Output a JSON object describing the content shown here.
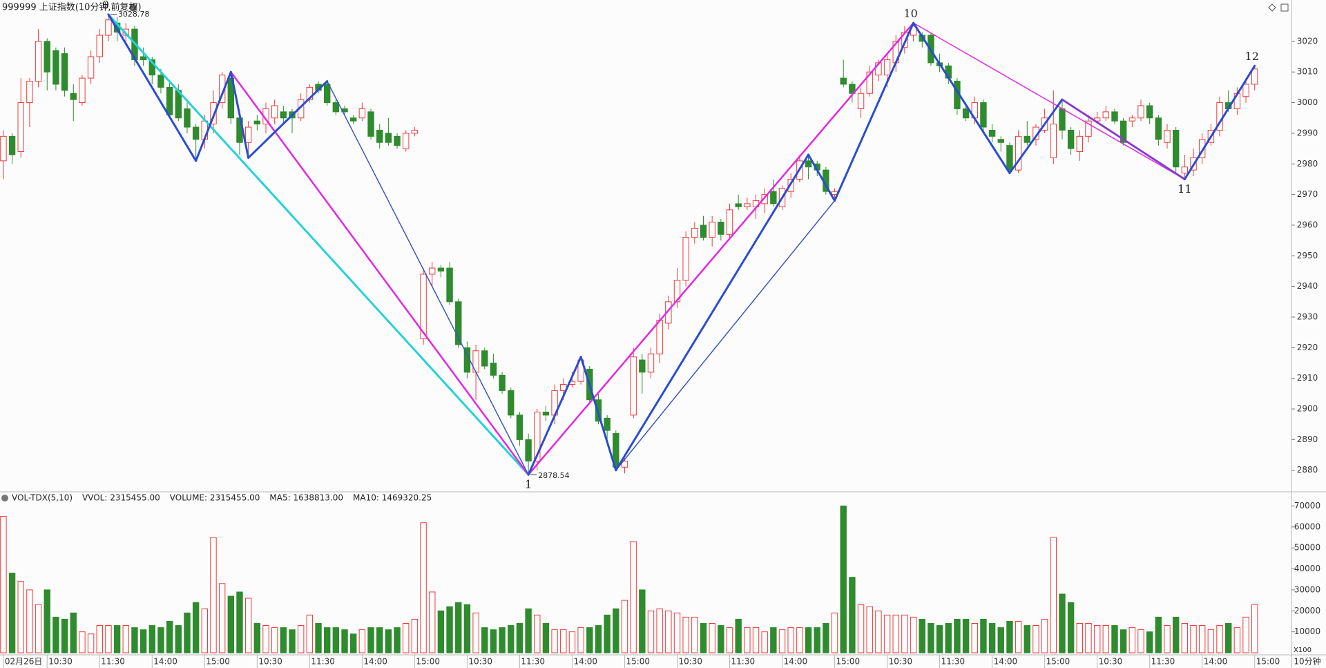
{
  "header": {
    "title": "999999 上证指数(10分钟,前复权)",
    "period": "10分钟"
  },
  "chart_data": [
    {
      "type": "candlestick",
      "up_color": "#f03a3a",
      "down_color": "#2e8b2e",
      "ylim": [
        2873.4,
        3033.5
      ],
      "yticks": [
        2880,
        2890,
        2900,
        2910,
        2920,
        2930,
        2940,
        2950,
        2960,
        2970,
        2980,
        2990,
        3000,
        3010,
        3020
      ],
      "open": [
        2981,
        2989,
        2984,
        3000,
        3007,
        3020,
        3017,
        3016,
        3003,
        3000,
        3008,
        3015,
        3022,
        3026,
        3022,
        3024,
        3015,
        3014,
        3009,
        3005,
        3004,
        2998,
        2992,
        2988,
        2993,
        3000,
        3008,
        2995,
        2987,
        2994,
        2993,
        2995,
        2997,
        2997,
        2995,
        3001,
        3006,
        3006,
        3000,
        2998,
        2995,
        2995,
        2997,
        2991,
        2990,
        2989,
        2985,
        2990,
        2923,
        2944,
        2946,
        2946,
        2935,
        2920,
        2912,
        2919,
        2915,
        2911,
        2906,
        2898,
        2890,
        2883,
        2899,
        2898,
        2906,
        2908,
        2909,
        2913,
        2903,
        2897,
        2892,
        2881,
        2898,
        2916,
        2912,
        2918,
        2928,
        2935,
        2942,
        2956,
        2960,
        2956,
        2961,
        2957,
        2967,
        2966,
        2966,
        2967,
        2971,
        2966,
        2971,
        2975,
        2981,
        2980,
        2978,
        2970,
        3008,
        3006,
        2998,
        3003,
        3009,
        3009,
        3013,
        3018,
        3022,
        3022,
        3022,
        3013,
        3012,
        3007,
        2998,
        2995,
        3000,
        2991,
        2988,
        2986,
        2978,
        2989,
        2988,
        2991,
        2982,
        2998,
        2991,
        2984,
        2989,
        2994,
        2995,
        2997,
        2994,
        2994,
        2995,
        2999,
        2995,
        2987,
        2991,
        2977,
        2978,
        2982,
        2987,
        2991,
        3000,
        2998,
        3002,
        3006
      ],
      "high": [
        2991,
        2990,
        3008,
        3008,
        3024,
        3021,
        3018,
        3018,
        3006,
        3009,
        3017,
        3024,
        3028.78,
        3028,
        3026,
        3025,
        3018,
        3015,
        3011,
        3007,
        3006,
        3000,
        2993,
        2996,
        3004,
        3010,
        3010,
        2997,
        2994,
        2996,
        3000,
        3001,
        2999,
        2998,
        3003,
        3006,
        3007,
        3007,
        3001,
        2999,
        2996,
        3000,
        2998,
        2993,
        2995,
        2990,
        2991,
        2992,
        2946,
        2948,
        2947,
        2948,
        2936,
        2922,
        2921,
        2920,
        2918,
        2912,
        2907,
        2899,
        2892,
        2900,
        2901,
        2908,
        2910,
        2912,
        2917,
        2914,
        2905,
        2898,
        2893,
        2884,
        2920,
        2918,
        2920,
        2931,
        2937,
        2946,
        2958,
        2961,
        2963,
        2963,
        2962,
        2967,
        2970,
        2969,
        2970,
        2972,
        2975,
        2973,
        2977,
        2983,
        2983,
        2981,
        2979,
        2972,
        3014,
        3007,
        3005,
        3012,
        3014,
        3016,
        3022,
        3025,
        3026,
        3023,
        3023,
        3016,
        3013,
        3008,
        3000,
        3002,
        3001,
        2993,
        2989,
        2987,
        2991,
        2994,
        2993,
        2998,
        3004,
        3001,
        2992,
        2991,
        2996,
        2997,
        2999,
        2998,
        2995,
        2996,
        3001,
        3000,
        2996,
        2993,
        2992,
        2983,
        2985,
        2990,
        2993,
        3002,
        3004,
        3005,
        3008,
        3012
      ],
      "low": [
        2975,
        2980,
        2982,
        2992,
        3005,
        3004,
        3004,
        3002,
        2994,
        2999,
        3006,
        3013,
        3020,
        3020,
        3019,
        3012,
        3012,
        3006,
        3003,
        2995,
        2994,
        2990,
        2981,
        2985,
        2990,
        2998,
        2993,
        2983,
        2982,
        2991,
        2990,
        2993,
        2993,
        2990,
        2994,
        3000,
        3003,
        2999,
        2996,
        2996,
        2993,
        2994,
        2988,
        2985,
        2986,
        2985,
        2984,
        2989,
        2921,
        2940,
        2943,
        2934,
        2920,
        2910,
        2903,
        2913,
        2910,
        2905,
        2897,
        2888,
        2878.54,
        2880,
        2896,
        2895,
        2903,
        2907,
        2908,
        2902,
        2895,
        2890,
        2880,
        2879,
        2897,
        2905,
        2910,
        2915,
        2926,
        2933,
        2940,
        2954,
        2955,
        2953,
        2955,
        2956,
        2965,
        2965,
        2962,
        2964,
        2966,
        2965,
        2969,
        2974,
        2975,
        2976,
        2970,
        2968,
        3005,
        3000,
        2995,
        3002,
        3007,
        3005,
        3010,
        3016,
        3020,
        3018,
        3012,
        3010,
        3006,
        2996,
        2994,
        2993,
        2990,
        2987,
        2984,
        2977,
        2977,
        2986,
        2986,
        2990,
        2980,
        2988,
        2983,
        2981,
        2987,
        2993,
        2994,
        2993,
        2986,
        2992,
        2994,
        2993,
        2986,
        2985,
        2977,
        2975,
        2976,
        2980,
        2986,
        2989,
        2997,
        2996,
        3000,
        3004
      ],
      "close": [
        2989,
        2983,
        3000,
        3007,
        3020,
        3010,
        3006,
        3004,
        3001,
        3008,
        3015,
        3022,
        3027,
        3023,
        3024,
        3014,
        3014,
        3009,
        3005,
        2996,
        2995,
        2992,
        2988,
        2994,
        3000,
        3009,
        2995,
        2987,
        2992,
        2993,
        2998,
        2999,
        2995,
        2995,
        3001,
        3005,
        3004,
        3000,
        2997,
        2997,
        2994,
        2998,
        2989,
        2987,
        2987,
        2986,
        2990,
        2991,
        2944,
        2946,
        2945,
        2935,
        2921,
        2912,
        2919,
        2914,
        2911,
        2906,
        2898,
        2890,
        2883,
        2899,
        2898,
        2906,
        2908,
        2909,
        2916,
        2903,
        2896,
        2893,
        2881,
        2883,
        2917,
        2912,
        2918,
        2929,
        2935,
        2942,
        2956,
        2959,
        2956,
        2961,
        2957,
        2965,
        2966,
        2967,
        2968,
        2970,
        2967,
        2972,
        2975,
        2981,
        2979,
        2978,
        2971,
        2971,
        3006,
        3003,
        3003,
        3010,
        3013,
        3014,
        3020,
        3023,
        3025,
        3020,
        3013,
        3012,
        3008,
        2998,
        2995,
        3000,
        2992,
        2989,
        2987,
        2978,
        2989,
        2987,
        2992,
        2995,
        2993,
        2991,
        2985,
        2989,
        2994,
        2995,
        2997,
        2994,
        2987,
        2995,
        2999,
        2995,
        2988,
        2991,
        2979,
        2979,
        2982,
        2988,
        2991,
        3000,
        2998,
        3003,
        3006,
        3011
      ],
      "pivots": [
        {
          "label": "0",
          "x": 12,
          "y": 3028.78,
          "position": "above",
          "show_price": true
        },
        {
          "label": "1",
          "x": 60,
          "y": 2878.54,
          "position": "below",
          "show_price": true
        },
        {
          "label": "10",
          "x": 104,
          "y": 3026,
          "position": "above",
          "show_price": false
        },
        {
          "label": "11",
          "x": 135,
          "y": 2975,
          "position": "below",
          "show_price": false
        },
        {
          "label": "12",
          "x": 143,
          "y": 3012,
          "position": "above",
          "show_price": false
        }
      ],
      "segments": [
        {
          "x": [
            12,
            60
          ],
          "y": [
            3028.78,
            2878.54
          ],
          "color": "#22d3d8",
          "width": 3
        },
        {
          "x": [
            26,
            60
          ],
          "y": [
            3010,
            2878.54
          ],
          "color": "#e526e5",
          "width": 2.5
        },
        {
          "x": [
            60,
            104
          ],
          "y": [
            2878.54,
            3026
          ],
          "color": "#e526e5",
          "width": 2.5
        },
        {
          "x": [
            104,
            135
          ],
          "y": [
            3026,
            2975
          ],
          "color": "#e526e5",
          "width": 1.5
        },
        {
          "x": [
            121,
            135
          ],
          "y": [
            3001,
            2975
          ],
          "color": "#e526e5",
          "width": 3
        },
        {
          "x": [
            12,
            22
          ],
          "y": [
            3028.78,
            2981
          ],
          "color": "#2a4cd4",
          "width": 3
        },
        {
          "x": [
            22,
            26
          ],
          "y": [
            2981,
            3010
          ],
          "color": "#2a4cd4",
          "width": 3
        },
        {
          "x": [
            26,
            28
          ],
          "y": [
            3010,
            2982
          ],
          "color": "#2a4cd4",
          "width": 3
        },
        {
          "x": [
            28,
            37
          ],
          "y": [
            2982,
            3007
          ],
          "color": "#2a4cd4",
          "width": 3
        },
        {
          "x": [
            37,
            60
          ],
          "y": [
            3007,
            2878.54
          ],
          "color": "#3a56c0",
          "width": 1.5
        },
        {
          "x": [
            60,
            66
          ],
          "y": [
            2878.54,
            2917
          ],
          "color": "#2a4cd4",
          "width": 3
        },
        {
          "x": [
            66,
            70
          ],
          "y": [
            2917,
            2880
          ],
          "color": "#2a4cd4",
          "width": 3
        },
        {
          "x": [
            70,
            95
          ],
          "y": [
            2880,
            2968
          ],
          "color": "#3a56c0",
          "width": 1.5
        },
        {
          "x": [
            70,
            92
          ],
          "y": [
            2880,
            2983
          ],
          "color": "#2a4cd4",
          "width": 3
        },
        {
          "x": [
            92,
            95
          ],
          "y": [
            2983,
            2968
          ],
          "color": "#2a4cd4",
          "width": 3
        },
        {
          "x": [
            95,
            104
          ],
          "y": [
            2968,
            3026
          ],
          "color": "#2a4cd4",
          "width": 3
        },
        {
          "x": [
            104,
            115
          ],
          "y": [
            3026,
            2977
          ],
          "color": "#2a4cd4",
          "width": 3
        },
        {
          "x": [
            115,
            121
          ],
          "y": [
            2977,
            3001
          ],
          "color": "#2a4cd4",
          "width": 3
        },
        {
          "x": [
            121,
            135
          ],
          "y": [
            3001,
            2975
          ],
          "color": "#3a56c0",
          "width": 1.5
        },
        {
          "x": [
            135,
            143
          ],
          "y": [
            2975,
            3012
          ],
          "color": "#2a4cd4",
          "width": 3
        }
      ]
    },
    {
      "type": "bar",
      "indicator": [
        {
          "text": "VOL-TDX(5,10)",
          "color": "#222222"
        },
        {
          "text": "VVOL: 2315455.00",
          "color": "#222222"
        },
        {
          "text": "VOLUME: 2315455.00",
          "color": "#1e7ec8"
        },
        {
          "text": "MA5: 1638813.00",
          "color": "#1e7ec8"
        },
        {
          "text": "MA10: 1469320.25",
          "color": "#a0209a"
        }
      ],
      "unit_label": "X100",
      "ylim": [
        0,
        76400
      ],
      "yticks": [
        10000,
        20000,
        30000,
        40000,
        50000,
        60000,
        70000
      ],
      "categories": [
        "02月26日",
        null,
        null,
        null,
        null,
        "10:30",
        null,
        null,
        null,
        null,
        null,
        "11:30",
        null,
        null,
        null,
        null,
        null,
        "14:00",
        null,
        null,
        null,
        null,
        null,
        "15:00",
        null,
        null,
        null,
        null,
        null,
        "10:30",
        null,
        null,
        null,
        null,
        null,
        "11:30",
        null,
        null,
        null,
        null,
        null,
        "14:00",
        null,
        null,
        null,
        null,
        null,
        "15:00",
        null,
        null,
        null,
        null,
        null,
        "10:30",
        null,
        null,
        null,
        null,
        null,
        "11:30",
        null,
        null,
        null,
        null,
        null,
        "14:00",
        null,
        null,
        null,
        null,
        null,
        "15:00",
        null,
        null,
        null,
        null,
        null,
        "10:30",
        null,
        null,
        null,
        null,
        null,
        "11:30",
        null,
        null,
        null,
        null,
        null,
        "14:00",
        null,
        null,
        null,
        null,
        null,
        "15:00",
        null,
        null,
        null,
        null,
        null,
        "10:30",
        null,
        null,
        null,
        null,
        null,
        "11:30",
        null,
        null,
        null,
        null,
        null,
        "14:00",
        null,
        null,
        null,
        null,
        null,
        "15:00",
        null,
        null,
        null,
        null,
        null,
        "10:30",
        null,
        null,
        null,
        null,
        null,
        "11:30",
        null,
        null,
        null,
        null,
        null,
        "14:00",
        null,
        null,
        null,
        null,
        null,
        "15:00"
      ],
      "values": [
        65000,
        38000,
        34000,
        30000,
        23000,
        30000,
        17000,
        16000,
        19000,
        10000,
        9000,
        13000,
        13000,
        13000,
        13000,
        12000,
        11000,
        13000,
        12000,
        15000,
        13000,
        19000,
        24000,
        21000,
        55000,
        33000,
        27000,
        29000,
        26000,
        14000,
        13000,
        12000,
        12000,
        11000,
        13000,
        18000,
        14000,
        12000,
        12000,
        11000,
        9000,
        11000,
        12000,
        12000,
        11000,
        12000,
        14000,
        16000,
        62000,
        29000,
        20000,
        22000,
        24000,
        23000,
        19000,
        12000,
        11000,
        12000,
        13000,
        14000,
        21000,
        18000,
        14000,
        11000,
        11000,
        10000,
        12000,
        12000,
        13000,
        18000,
        21000,
        25000,
        53000,
        30000,
        20000,
        21000,
        20000,
        19000,
        17000,
        17000,
        14000,
        14000,
        13000,
        12000,
        16000,
        12000,
        12000,
        10000,
        12000,
        11000,
        12000,
        12000,
        12000,
        12000,
        14000,
        19000,
        70000,
        36000,
        23000,
        22000,
        20000,
        18000,
        18000,
        18000,
        17000,
        16000,
        14000,
        13000,
        14000,
        16000,
        16000,
        14000,
        16000,
        14000,
        12000,
        15000,
        15000,
        13000,
        13000,
        16000,
        55000,
        28000,
        24000,
        14000,
        14000,
        13000,
        13000,
        13000,
        11000,
        12000,
        11000,
        10000,
        17000,
        13000,
        17000,
        14000,
        13000,
        13000,
        11000,
        13000,
        14000,
        12000,
        17000,
        23000
      ]
    }
  ]
}
